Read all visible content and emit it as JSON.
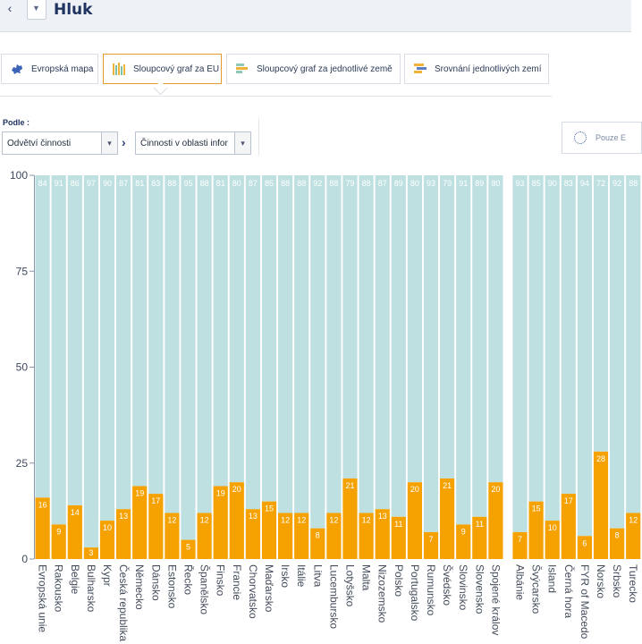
{
  "header": {
    "title": "Hluk"
  },
  "tabs": [
    {
      "label": "Evropská mapa",
      "icon": "europe-map-icon"
    },
    {
      "label": "Sloupcový graf za EU",
      "icon": "bar-chart-icon",
      "active": true
    },
    {
      "label": "Sloupcový graf za jednotlivé země",
      "icon": "horizontal-bar-chart-icon"
    },
    {
      "label": "Srovnání jednotlivých zemí",
      "icon": "comparison-chart-icon"
    }
  ],
  "filters": {
    "podle_label": "Podle :",
    "select1_value": "Odvětví činnosti",
    "select2_value": "Činnosti v oblasti infor",
    "pouze_label": "Pouze E"
  },
  "colors": {
    "yes": "#f5a200",
    "no": "#bfe0e1",
    "accent": "#e59a2d"
  },
  "chart_data": {
    "type": "bar",
    "stacked": true,
    "ylim": [
      0,
      100
    ],
    "yticks": [
      "0",
      "25",
      "50",
      "75",
      "100"
    ],
    "grid": false,
    "categories": [
      "Evropská unie",
      "Rakousko",
      "Belgie",
      "Bulharsko",
      "Kypr",
      "Česká republika",
      "Německo",
      "Dánsko",
      "Estonsko",
      "Řecko",
      "Španělsko",
      "Finsko",
      "Francie",
      "Chorvatsko",
      "Maďarsko",
      "Irsko",
      "Itálie",
      "Litva",
      "Lucembursko",
      "Lotyšsko",
      "Malta",
      "Nizozemsko",
      "Polsko",
      "Portugalsko",
      "Rumunsko",
      "Švédsko",
      "Slovinsko",
      "Slovensko",
      "Spojené králov",
      "Albánie",
      "Švýcarsko",
      "Island",
      "Černá hora",
      "FYR of Macedo",
      "Norsko",
      "Srbsko",
      "Turecko"
    ],
    "series": [
      {
        "values": [
          16,
          9,
          14,
          3,
          10,
          13,
          19,
          17,
          12,
          5,
          12,
          19,
          20,
          13,
          15,
          12,
          12,
          8,
          12,
          21,
          12,
          13,
          11,
          20,
          7,
          21,
          9,
          11,
          20,
          7,
          15,
          10,
          17,
          6,
          28,
          8,
          12
        ]
      },
      {
        "values": [
          84,
          91,
          86,
          97,
          90,
          87,
          81,
          83,
          88,
          95,
          88,
          81,
          80,
          87,
          85,
          88,
          88,
          92,
          88,
          79,
          88,
          87,
          89,
          80,
          93,
          79,
          91,
          89,
          80,
          93,
          85,
          90,
          83,
          94,
          72,
          92,
          88
        ]
      }
    ]
  }
}
